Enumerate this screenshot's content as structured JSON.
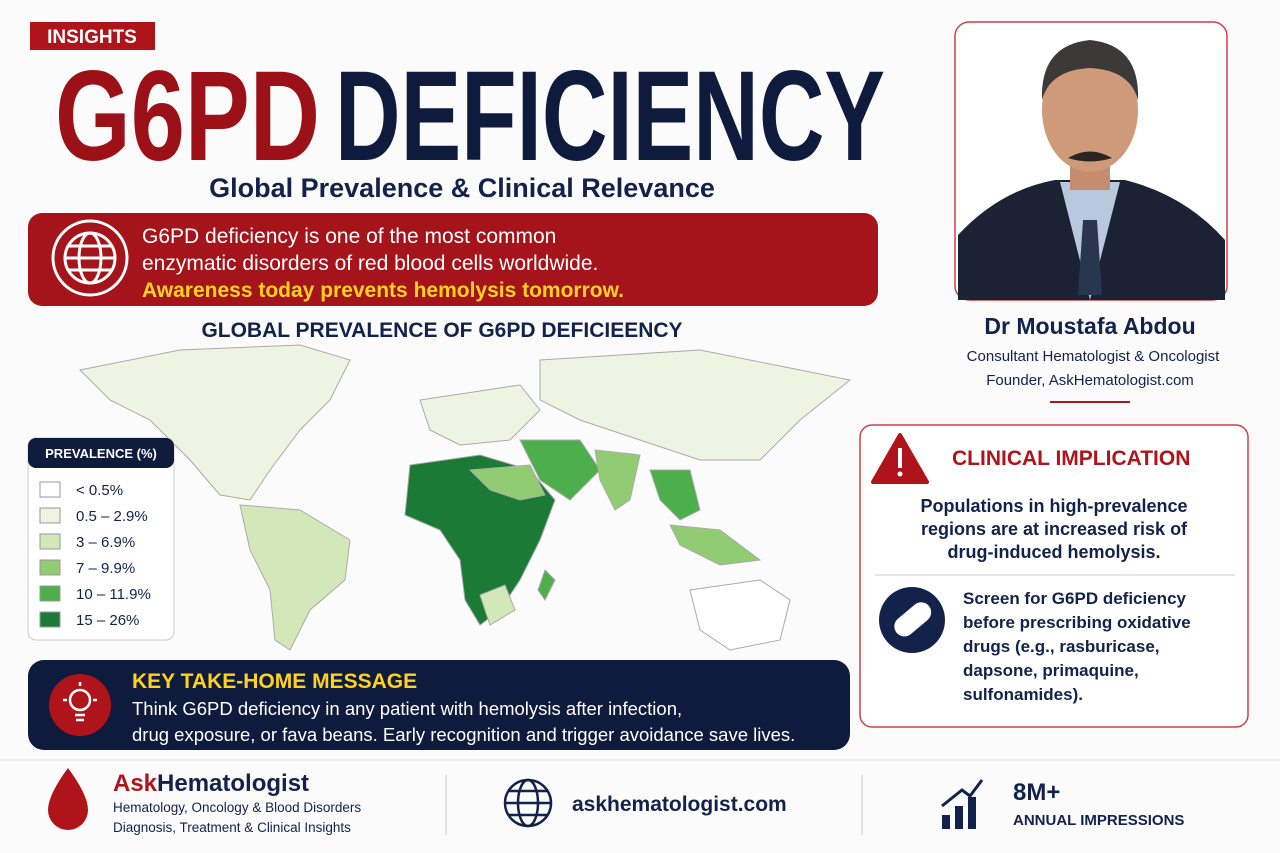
{
  "badge": "INSIGHTS",
  "title": {
    "part1": "G6PD",
    "part2": "DEFICIENCY"
  },
  "subtitle": "Global Prevalence & Clinical Relevance",
  "intro": {
    "lines": [
      "G6PD deficiency is one of the most common",
      "enzymatic disorders of red blood cells worldwide."
    ],
    "highlight": "Awareness today prevents hemolysis tomorrow."
  },
  "map": {
    "title": "GLOBAL PREVALENCE OF G6PD DEFICIEENCY",
    "legend": {
      "title": "PREVALENCE (%)",
      "items": [
        {
          "label": "< 0.5%",
          "color": "#ffffff"
        },
        {
          "label": "0.5 – 2.9%",
          "color": "#eef4e2"
        },
        {
          "label": "3 – 6.9%",
          "color": "#d3e8b8"
        },
        {
          "label": "7 – 9.9%",
          "color": "#92cc72"
        },
        {
          "label": "10 – 11.9%",
          "color": "#4caf4c"
        },
        {
          "label": "15 – 26%",
          "color": "#1a7a36"
        }
      ]
    }
  },
  "takeaway": {
    "title": "KEY TAKE-HOME MESSAGE",
    "lines": [
      "Think G6PD deficiency in any patient with hemolysis after infection,",
      "drug exposure, or fava beans. Early recognition and trigger avoidance save lives."
    ]
  },
  "profile": {
    "name": "Dr Moustafa Abdou",
    "roles": [
      "Consultant Hematologist & Oncologist",
      "Founder, AskHematologist.com"
    ]
  },
  "clinical": {
    "title": "CLINICAL IMPLICATION",
    "risk": [
      "Populations in high-prevalence",
      "regions are at increased risk of",
      "drug-induced hemolysis."
    ],
    "screen": [
      "Screen for G6PD deficiency",
      "before prescribing oxidative",
      "drugs (e.g., rasburicase,",
      "dapsone, primaquine,",
      "sulfonamides)."
    ]
  },
  "footer": {
    "brand": {
      "name_part1": "Ask",
      "name_part2": "Hematologist",
      "lines": [
        "Hematology, Oncology & Blood Disorders",
        "Diagnosis, Treatment & Clinical Insights"
      ]
    },
    "website": "askhematologist.com",
    "stats": {
      "value": "8M+",
      "label": "ANNUAL IMPRESSIONS"
    }
  }
}
